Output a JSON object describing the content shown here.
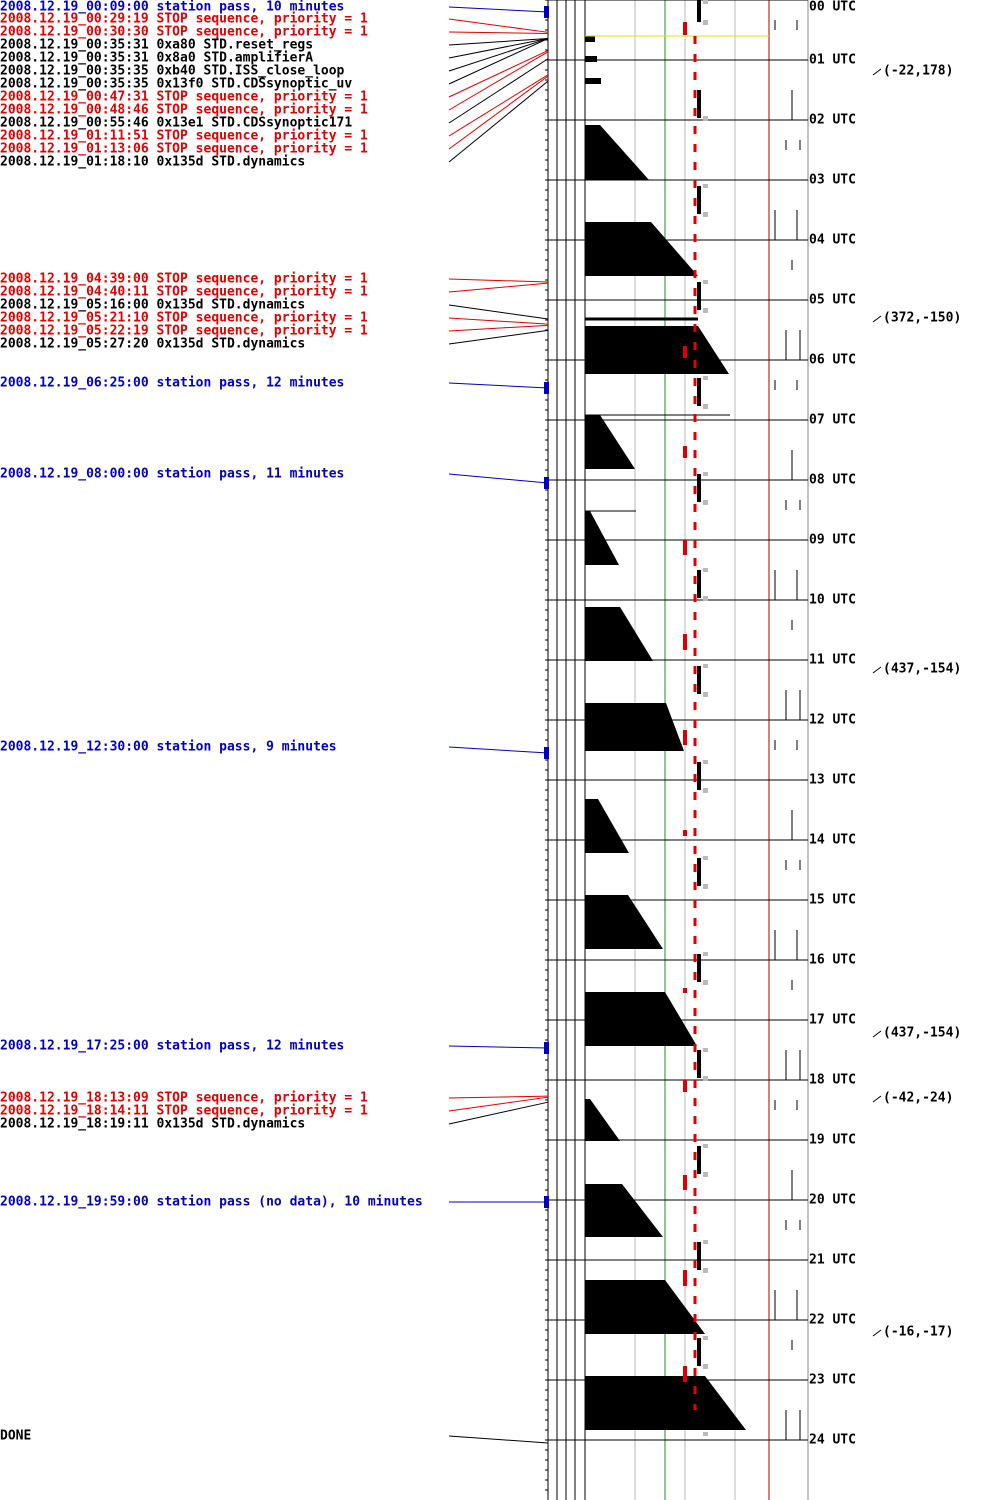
{
  "events": [
    {
      "text": "2008.12.19_00:09:00 station pass, 10 minutes",
      "color": "#0000c0"
    },
    {
      "text": "2008.12.19_00:29:19 STOP sequence, priority = 1",
      "color": "#e00000"
    },
    {
      "text": "2008.12.19_00:30:30 STOP sequence, priority = 1",
      "color": "#e00000"
    },
    {
      "text": "2008.12.19_00:35:31  0xa80 STD.reset_regs",
      "color": "#000000"
    },
    {
      "text": "2008.12.19_00:35:31  0x8a0 STD.amplifierA",
      "color": "#000000"
    },
    {
      "text": "2008.12.19_00:35:35  0xb40 STD.ISS_close_loop",
      "color": "#000000"
    },
    {
      "text": "2008.12.19_00:35:35 0x13f0 STD.CDSsynoptic_uv",
      "color": "#000000"
    },
    {
      "text": "2008.12.19_00:47:31 STOP sequence, priority = 1",
      "color": "#e00000"
    },
    {
      "text": "2008.12.19_00:48:46 STOP sequence, priority = 1",
      "color": "#e00000"
    },
    {
      "text": "2008.12.19_00:55:46 0x13e1 STD.CDSsynoptic171",
      "color": "#000000"
    },
    {
      "text": "2008.12.19_01:11:51 STOP sequence, priority = 1",
      "color": "#e00000"
    },
    {
      "text": "2008.12.19_01:13:06 STOP sequence, priority = 1",
      "color": "#e00000"
    },
    {
      "text": "2008.12.19_01:18:10 0x135d STD.dynamics",
      "color": "#000000"
    },
    {
      "text": "2008.12.19_04:39:00 STOP sequence, priority = 1",
      "color": "#e00000"
    },
    {
      "text": "2008.12.19_04:40:11 STOP sequence, priority = 1",
      "color": "#e00000"
    },
    {
      "text": "2008.12.19_05:16:00 0x135d STD.dynamics",
      "color": "#000000"
    },
    {
      "text": "2008.12.19_05:21:10 STOP sequence, priority = 1",
      "color": "#e00000"
    },
    {
      "text": "2008.12.19_05:22:19 STOP sequence, priority = 1",
      "color": "#e00000"
    },
    {
      "text": "2008.12.19_05:27:20 0x135d STD.dynamics",
      "color": "#000000"
    },
    {
      "text": "2008.12.19_06:25:00 station pass, 12 minutes",
      "color": "#0000c0"
    },
    {
      "text": "2008.12.19_08:00:00 station pass, 11 minutes",
      "color": "#0000c0"
    },
    {
      "text": "2008.12.19_12:30:00 station pass, 9 minutes",
      "color": "#0000c0"
    },
    {
      "text": "2008.12.19_17:25:00 station pass, 12 minutes",
      "color": "#0000c0"
    },
    {
      "text": "2008.12.19_18:13:09 STOP sequence, priority = 1",
      "color": "#e00000"
    },
    {
      "text": "2008.12.19_18:14:11 STOP sequence, priority = 1",
      "color": "#e00000"
    },
    {
      "text": "2008.12.19_18:19:11 0x135d STD.dynamics",
      "color": "#000000"
    },
    {
      "text": "2008.12.19_19:59:00 station pass (no data), 10 minutes",
      "color": "#0000c0"
    },
    {
      "text": "DONE",
      "color": "#000000"
    }
  ],
  "hours": [
    "00 UTC",
    "01 UTC",
    "02 UTC",
    "03 UTC",
    "04 UTC",
    "05 UTC",
    "06 UTC",
    "07 UTC",
    "08 UTC",
    "09 UTC",
    "10 UTC",
    "11 UTC",
    "12 UTC",
    "13 UTC",
    "14 UTC",
    "15 UTC",
    "16 UTC",
    "17 UTC",
    "18 UTC",
    "19 UTC",
    "20 UTC",
    "21 UTC",
    "22 UTC",
    "23 UTC",
    "24 UTC"
  ],
  "positions": [
    "(-22,178)",
    "(372,-150)",
    "(437,-154)",
    "(437,-154)",
    "(-42,-24)",
    "(-16,-17)"
  ]
}
